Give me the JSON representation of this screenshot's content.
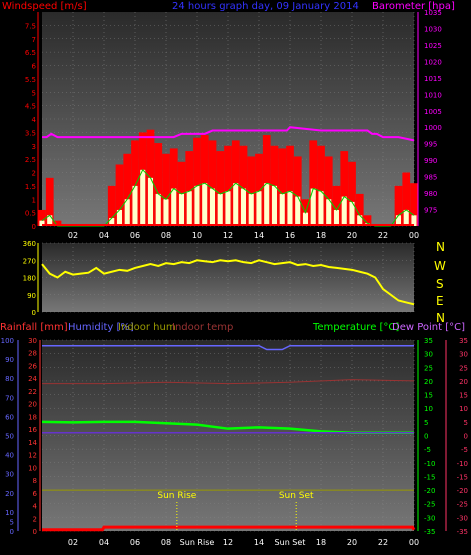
{
  "header": {
    "windspeed": "Windspeed [m/s]",
    "title": "24 hours graph day, 09 January 2014",
    "barometer": "Barometer [hpa]"
  },
  "footer_labels": {
    "rainfall": "Rainfall [mm]",
    "humidity": "Humidity [%]",
    "indoor_hum": "Indoor hum",
    "indoor_temp": "Indoor temp",
    "temperature": "Temperature [°C]",
    "dew_point": "Dew Point [°C]",
    "sun_rise": "Sun Rise",
    "sun_set": "Sun Set"
  },
  "compass_letters": [
    "N",
    "W",
    "S",
    "E",
    "N"
  ],
  "x_tick_labels": [
    "02",
    "04",
    "06",
    "08",
    "10",
    "12",
    "14",
    "16",
    "18",
    "20",
    "22",
    "00"
  ],
  "x_tick_labels_bottom": [
    "02",
    "04",
    "06",
    "08",
    "Sun Rise",
    "12",
    "14",
    "Sun Set",
    "18",
    "20",
    "22",
    "00"
  ],
  "colors": {
    "windspeed": "#ff0000",
    "gust": "#00cc00",
    "avg_wind": "#ffffcc",
    "barometer": "#ff00ff",
    "direction": "#ffff00",
    "rainfall": "#ff0000",
    "humidity": "#6666ff",
    "indoor_hum": "#999900",
    "indoor_temp": "#993333",
    "temperature": "#00ff00",
    "dew_point": "#6633cc"
  },
  "chart_data": [
    {
      "type": "bar",
      "name": "wind",
      "x_range_hours": [
        0,
        24
      ],
      "y_left": {
        "label": "Windspeed [m/s]",
        "range": [
          0,
          8
        ],
        "ticks": [
          0,
          0.5,
          1,
          1.5,
          2,
          2.5,
          3,
          3.5,
          4,
          4.5,
          5,
          5.5,
          6,
          6.5,
          7,
          7.5
        ]
      },
      "y_right": {
        "label": "Barometer [hpa]",
        "range": [
          970,
          1035
        ],
        "ticks": [
          975,
          980,
          985,
          990,
          995,
          1000,
          1005,
          1010,
          1015,
          1020,
          1025,
          1030,
          1035
        ]
      },
      "series": [
        {
          "name": "Windspeed",
          "hours": [
            0,
            0.5,
            1,
            1.5,
            2,
            2.5,
            3,
            3.5,
            4,
            4.5,
            5,
            5.5,
            6,
            6.5,
            7,
            7.5,
            8,
            8.5,
            9,
            9.5,
            10,
            10.5,
            11,
            11.5,
            12,
            12.5,
            13,
            13.5,
            14,
            14.5,
            15,
            15.5,
            16,
            16.5,
            17,
            17.5,
            18,
            18.5,
            19,
            19.5,
            20,
            20.5,
            21,
            21.5,
            22,
            22.5,
            23,
            23.5,
            24
          ],
          "values": [
            0.6,
            1.8,
            0.2,
            0,
            0,
            0,
            0,
            0,
            0,
            1.5,
            2.3,
            2.7,
            3.2,
            3.5,
            3.6,
            3.1,
            2.7,
            2.9,
            2.4,
            2.8,
            3.3,
            3.4,
            3.2,
            2.8,
            3.0,
            3.2,
            3.0,
            2.6,
            2.7,
            3.4,
            3.0,
            2.9,
            3.0,
            2.6,
            1.0,
            3.2,
            3.0,
            2.6,
            1.5,
            2.8,
            2.4,
            1.2,
            0.4,
            0,
            0,
            0,
            1.5,
            2.0,
            1.6
          ]
        },
        {
          "name": "Gust",
          "hours": [
            0,
            0.5,
            1,
            1.5,
            2,
            2.5,
            3,
            3.5,
            4,
            4.5,
            5,
            5.5,
            6,
            6.5,
            7,
            7.5,
            8,
            8.5,
            9,
            9.5,
            10,
            10.5,
            11,
            11.5,
            12,
            12.5,
            13,
            13.5,
            14,
            14.5,
            15,
            15.5,
            16,
            16.5,
            17,
            17.5,
            18,
            18.5,
            19,
            19.5,
            20,
            20.5,
            21,
            21.5,
            22,
            22.5,
            23,
            23.5,
            24
          ],
          "values": [
            0.2,
            0.4,
            0,
            0,
            0,
            0,
            0,
            0,
            0,
            0.3,
            0.6,
            1.0,
            1.5,
            2.1,
            1.8,
            1.2,
            1.0,
            1.4,
            1.2,
            1.3,
            1.5,
            1.6,
            1.4,
            1.2,
            1.3,
            1.6,
            1.4,
            1.2,
            1.3,
            1.6,
            1.5,
            1.2,
            1.3,
            1.1,
            0.5,
            1.4,
            1.3,
            1.0,
            0.6,
            1.1,
            0.9,
            0.4,
            0.1,
            0,
            0,
            0,
            0.4,
            0.6,
            0.4
          ]
        },
        {
          "name": "Barometer",
          "hours": [
            0,
            0.3,
            0.6,
            1,
            3,
            5,
            7,
            8.5,
            9,
            10.5,
            11,
            12,
            14,
            15.8,
            16,
            18,
            20,
            21,
            21.3,
            21.6,
            22,
            23,
            24
          ],
          "values": [
            997,
            997,
            998,
            997,
            997,
            997,
            997,
            997,
            998,
            998,
            999,
            999,
            999,
            999,
            1000,
            999,
            999,
            999,
            998,
            998,
            997,
            997,
            996
          ]
        }
      ]
    },
    {
      "type": "line",
      "name": "wind-direction",
      "x_range_hours": [
        0,
        24
      ],
      "y_left": {
        "range": [
          0,
          360
        ],
        "ticks": [
          0,
          90,
          180,
          270,
          360
        ]
      },
      "series": [
        {
          "name": "Direction",
          "hours": [
            0,
            0.5,
            1,
            1.5,
            2,
            2.5,
            3,
            3.5,
            4,
            4.5,
            5,
            5.5,
            6,
            6.5,
            7,
            7.5,
            8,
            8.5,
            9,
            9.5,
            10,
            10.5,
            11,
            11.5,
            12,
            12.5,
            13,
            13.5,
            14,
            14.5,
            15,
            15.5,
            16,
            16.5,
            17,
            17.5,
            18,
            18.5,
            19,
            19.5,
            20,
            20.5,
            21,
            21.5,
            22,
            22.5,
            23,
            23.5,
            24
          ],
          "values": [
            250,
            200,
            180,
            210,
            195,
            200,
            205,
            230,
            200,
            210,
            220,
            215,
            230,
            240,
            250,
            240,
            255,
            250,
            260,
            255,
            270,
            265,
            260,
            270,
            265,
            270,
            260,
            255,
            270,
            260,
            250,
            255,
            260,
            245,
            250,
            240,
            245,
            235,
            230,
            225,
            220,
            210,
            200,
            180,
            120,
            90,
            60,
            50,
            40
          ]
        }
      ]
    },
    {
      "type": "line",
      "name": "temperature-humidity",
      "x_range_hours": [
        0,
        24
      ],
      "y_left_outer": {
        "label": "Rainfall [mm]",
        "ticks": [
          0,
          2,
          4,
          6,
          8,
          10,
          12,
          14,
          16,
          18,
          20,
          22,
          24,
          26,
          28,
          30
        ]
      },
      "y_left_inner": {
        "label": "Humidity [%]",
        "ticks": [
          0,
          5,
          10,
          20,
          30,
          40,
          50,
          60,
          70,
          80,
          90,
          100
        ]
      },
      "y_right_inner": {
        "label": "Temperature [°C]",
        "range": [
          -35,
          35
        ],
        "ticks": [
          -35,
          -30,
          -25,
          -20,
          -15,
          -10,
          -5,
          0,
          5,
          10,
          15,
          20,
          25,
          30,
          35
        ]
      },
      "y_right_outer": {
        "label": "Dew Point [°C]",
        "ticks": [
          -35,
          -30,
          -25,
          -20,
          -15,
          -10,
          -5,
          0,
          5,
          10,
          15,
          20,
          25,
          30,
          35
        ]
      },
      "series": [
        {
          "name": "Humidity",
          "hours": [
            0,
            4,
            8,
            12,
            14,
            14.5,
            15,
            15.5,
            16,
            20,
            24
          ],
          "values": [
            97,
            97,
            97,
            97,
            97,
            95,
            95,
            95,
            97,
            97,
            97
          ]
        },
        {
          "name": "Indoor temp",
          "hours": [
            0,
            4,
            8,
            12,
            16,
            20,
            24
          ],
          "values": [
            19,
            19,
            19.5,
            19,
            19.5,
            20.5,
            20
          ]
        },
        {
          "name": "Temperature",
          "hours": [
            0,
            2,
            4,
            6,
            8,
            10,
            12,
            14,
            16,
            18,
            20,
            22,
            24
          ],
          "values": [
            5,
            4.8,
            5,
            5,
            4.5,
            4,
            2.5,
            3,
            2.5,
            1.5,
            1,
            1,
            1
          ]
        },
        {
          "name": "Dew Point",
          "hours": [
            0,
            4,
            8,
            12,
            16,
            20,
            24
          ],
          "values": [
            1,
            1,
            1,
            1,
            1,
            1,
            1
          ]
        },
        {
          "name": "Indoor hum",
          "hours": [
            0,
            4,
            8,
            12,
            16,
            20,
            24
          ],
          "values": [
            -20,
            -20,
            -20,
            -20,
            -20,
            -20,
            -20
          ]
        },
        {
          "name": "Rainfall",
          "hours": [
            0,
            3.9,
            4,
            8,
            12,
            16,
            20,
            23.9,
            24
          ],
          "values": [
            0.2,
            0.2,
            0.6,
            0.6,
            0.6,
            0.6,
            0.6,
            0.6,
            0.2
          ]
        }
      ],
      "annotations": [
        {
          "label": "Sun Rise",
          "hour": 8.7
        },
        {
          "label": "Sun Set",
          "hour": 16.4
        }
      ]
    }
  ]
}
